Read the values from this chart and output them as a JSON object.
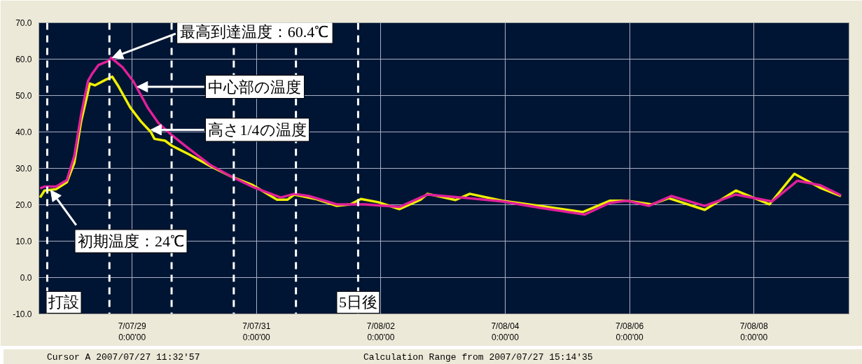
{
  "chart_data": {
    "type": "line",
    "xlim": [
      "2007-07-27T12:00",
      "2007-08-09T12:43"
    ],
    "ylim": [
      -10,
      70
    ],
    "xticks": [
      {
        "value": "2007-07-29",
        "label": "7/07/29\n0:00'00"
      },
      {
        "value": "2007-07-31",
        "label": "7/07/31\n0:00'00"
      },
      {
        "value": "2007-08-02",
        "label": "7/08/02\n0:00'00"
      },
      {
        "value": "2007-08-04",
        "label": "7/08/04\n0:00'00"
      },
      {
        "value": "2007-08-06",
        "label": "7/08/06\n0:00'00"
      },
      {
        "value": "2007-08-08",
        "label": "7/08/08\n0:00'00"
      }
    ],
    "yticks": [
      {
        "value": -10,
        "label": "-10.0"
      },
      {
        "value": 0,
        "label": "0.0"
      },
      {
        "value": 10,
        "label": "10.0"
      },
      {
        "value": 20,
        "label": "20.0"
      },
      {
        "value": 30,
        "label": "30.0"
      },
      {
        "value": 40,
        "label": "40.0"
      },
      {
        "value": 50,
        "label": "50.0"
      },
      {
        "value": 60,
        "label": "60.0"
      },
      {
        "value": 70,
        "label": "70.0"
      }
    ],
    "grid": true,
    "series": [
      {
        "color": "#f0f000",
        "x": [
          "2007-07-27T12:29",
          "2007-07-27T14:10",
          "2007-07-27T18:43",
          "2007-07-27T22:48",
          "2007-07-28T01:41",
          "2007-07-28T04:19",
          "2007-07-28T06:29",
          "2007-07-28T07:41",
          "2007-07-28T09:36",
          "2007-07-28T13:41",
          "2007-07-28T16:19",
          "2007-07-28T18:29",
          "2007-07-28T23:17",
          "2007-07-29T03:22",
          "2007-07-29T07:12",
          "2007-07-29T08:38",
          "2007-07-29T12:43",
          "2007-07-29T15:22",
          "2007-07-29T22:05",
          "2007-07-30T06:14",
          "2007-07-30T14:24",
          "2007-07-30T22:34",
          "2007-07-31T07:55",
          "2007-07-31T12:00",
          "2007-07-31T14:38",
          "2007-07-31T22:48",
          "2007-08-01T06:58",
          "2007-08-01T12:14",
          "2007-08-01T16:19",
          "2007-08-01T23:02",
          "2007-08-02T07:12",
          "2007-08-02T15:22",
          "2007-08-02T18:00",
          "2007-08-03T04:48",
          "2007-08-03T10:19",
          "2007-08-03T22:48",
          "2007-08-04T13:12",
          "2007-08-05T06:00",
          "2007-08-05T16:19",
          "2007-08-05T22:48",
          "2007-08-06T08:38",
          "2007-08-06T15:07",
          "2007-08-07T05:02",
          "2007-08-07T17:02",
          "2007-08-08T06:00",
          "2007-08-08T15:36",
          "2007-08-09T01:26",
          "2007-08-09T09:36"
        ],
        "values": [
          22,
          23.9,
          24.3,
          26.2,
          31.5,
          42.9,
          49.5,
          53.3,
          52.8,
          54.3,
          55.2,
          52.8,
          46.7,
          42.9,
          40,
          38.1,
          37.6,
          36.2,
          33.8,
          30.6,
          27.7,
          25.4,
          21.4,
          21.4,
          22.8,
          21.6,
          19.7,
          20.1,
          21.6,
          20.7,
          18.8,
          21.4,
          23,
          21.3,
          23,
          21.1,
          19.7,
          18,
          21.1,
          21.1,
          20.1,
          21.8,
          18.6,
          23.9,
          20.1,
          28.5,
          24.7,
          22.4
        ]
      },
      {
        "color": "#e0209a",
        "x": [
          "2007-07-27T12:29",
          "2007-07-27T14:10",
          "2007-07-27T18:43",
          "2007-07-27T22:48",
          "2007-07-28T01:41",
          "2007-07-28T04:19",
          "2007-07-28T06:58",
          "2007-07-28T08:24",
          "2007-07-28T11:02",
          "2007-07-28T15:07",
          "2007-07-28T15:50",
          "2007-07-28T20:24",
          "2007-07-29T00:29",
          "2007-07-29T06:00",
          "2007-07-29T10:05",
          "2007-07-29T15:22",
          "2007-07-29T22:05",
          "2007-07-30T06:14",
          "2007-07-30T14:24",
          "2007-07-30T22:34",
          "2007-07-31T09:22",
          "2007-07-31T14:38",
          "2007-07-31T20:10",
          "2007-08-01T06:58",
          "2007-08-01T17:46",
          "2007-08-02T07:12",
          "2007-08-02T15:22",
          "2007-08-02T18:00",
          "2007-08-03T10:19",
          "2007-08-03T22:48",
          "2007-08-04T13:12",
          "2007-08-05T06:43",
          "2007-08-05T16:19",
          "2007-08-05T22:48",
          "2007-08-06T07:26",
          "2007-08-06T16:05",
          "2007-08-07T05:02",
          "2007-08-07T17:02",
          "2007-08-08T06:58",
          "2007-08-08T16:48",
          "2007-08-09T01:26",
          "2007-08-09T09:36"
        ],
        "values": [
          24.5,
          25,
          25,
          26.8,
          33.4,
          44.8,
          54,
          55.8,
          58.4,
          59.6,
          60.4,
          57.7,
          53.9,
          46.7,
          42.5,
          39.1,
          35.3,
          30.9,
          27.7,
          24.9,
          22,
          23,
          22.4,
          20.1,
          20.1,
          19.4,
          22,
          22.8,
          21.8,
          20.9,
          19.2,
          17.3,
          20.5,
          21.1,
          19.7,
          22.4,
          19.7,
          22.8,
          20.9,
          26.6,
          25.4,
          22.6
        ]
      }
    ],
    "ref_lines": [
      {
        "axis": "x",
        "value": "2007-07-27T15:14",
        "label": "打設",
        "color": "#ffffff",
        "line_style": "dashed"
      },
      {
        "axis": "x",
        "value": "2007-07-28T15:14",
        "label": null,
        "color": "#ffffff",
        "line_style": "dashed"
      },
      {
        "axis": "x",
        "value": "2007-07-29T15:14",
        "label": null,
        "color": "#ffffff",
        "line_style": "dashed"
      },
      {
        "axis": "x",
        "value": "2007-07-30T15:14",
        "label": null,
        "color": "#ffffff",
        "line_style": "dashed"
      },
      {
        "axis": "x",
        "value": "2007-07-31T15:14",
        "label": null,
        "color": "#ffffff",
        "line_style": "dashed"
      },
      {
        "axis": "x",
        "value": "2007-08-01T15:14",
        "label": "5日後",
        "color": "#ffffff",
        "line_style": "dashed"
      }
    ],
    "annotations": [
      {
        "text": "最高到達温度：60.4℃",
        "x": "2007-07-28T16:19",
        "y": 60.4
      },
      {
        "text": "中心部の温度",
        "x": "2007-07-29T01:55",
        "y": 52.4
      },
      {
        "text": "高さ1/4の温度",
        "x": "2007-07-29T07:12",
        "y": 40.6
      },
      {
        "text": "初期温度：24℃",
        "x": "2007-07-27T16:34",
        "y": 24
      },
      "Cursor A 2007/07/27 11:32'57",
      "Calculation Range from 2007/07/27 15:14'35"
    ]
  }
}
